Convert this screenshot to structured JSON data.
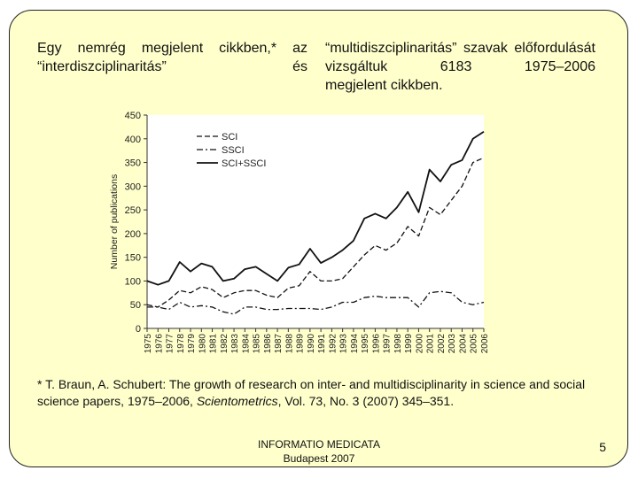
{
  "intro": {
    "text_main": "Egy nemrég megjelent cikkben,* az “interdiszciplinaritás” és “multidiszciplinaritás” szavak előfordulását vizsgáltuk 6183 1975–2006",
    "text_end": "megjelent cikkben."
  },
  "footnote": {
    "prefix": "* T. Braun, A. Schubert: The growth of research on inter- and multidisciplinarity in science and social science papers, 1975–2006, ",
    "journal": "Scientometrics",
    "suffix": ", Vol. 73, No. 3 (2007) 345–351."
  },
  "footer": {
    "line1": "INFORMATIO MEDICATA",
    "line2": "Budapest 2007",
    "page": "5"
  },
  "chart_data": {
    "type": "line",
    "title": "",
    "xlabel": "",
    "ylabel": "Number of publications",
    "ylim": [
      0,
      450
    ],
    "yticks": [
      "0",
      "50",
      "100",
      "150",
      "200",
      "250",
      "300",
      "350",
      "400",
      "450"
    ],
    "categories": [
      "1975",
      "1976",
      "1977",
      "1978",
      "1979",
      "1980",
      "1981",
      "1982",
      "1983",
      "1984",
      "1985",
      "1986",
      "1987",
      "1988",
      "1989",
      "1990",
      "1991",
      "1992",
      "1993",
      "1994",
      "1995",
      "1996",
      "1997",
      "1998",
      "1999",
      "2000",
      "2001",
      "2002",
      "2003",
      "2004",
      "2005",
      "2006"
    ],
    "legend_position": "top-right",
    "series": [
      {
        "name": "SCI",
        "style": "dashed",
        "values": [
          50,
          45,
          60,
          80,
          75,
          88,
          82,
          65,
          75,
          80,
          80,
          70,
          65,
          85,
          90,
          120,
          100,
          100,
          105,
          130,
          155,
          175,
          165,
          180,
          215,
          195,
          255,
          240,
          270,
          300,
          350,
          360
        ]
      },
      {
        "name": "SSCI",
        "style": "dashdot",
        "values": [
          45,
          45,
          40,
          55,
          45,
          48,
          45,
          35,
          30,
          45,
          45,
          40,
          40,
          42,
          42,
          42,
          40,
          45,
          55,
          55,
          65,
          68,
          65,
          65,
          65,
          45,
          75,
          78,
          75,
          55,
          50,
          55
        ]
      },
      {
        "name": "SCI+SSCI",
        "style": "solid",
        "values": [
          100,
          92,
          100,
          140,
          120,
          137,
          130,
          100,
          105,
          125,
          130,
          115,
          100,
          128,
          135,
          168,
          138,
          150,
          165,
          185,
          232,
          242,
          232,
          255,
          288,
          245,
          335,
          310,
          345,
          355,
          400,
          415
        ]
      }
    ]
  }
}
